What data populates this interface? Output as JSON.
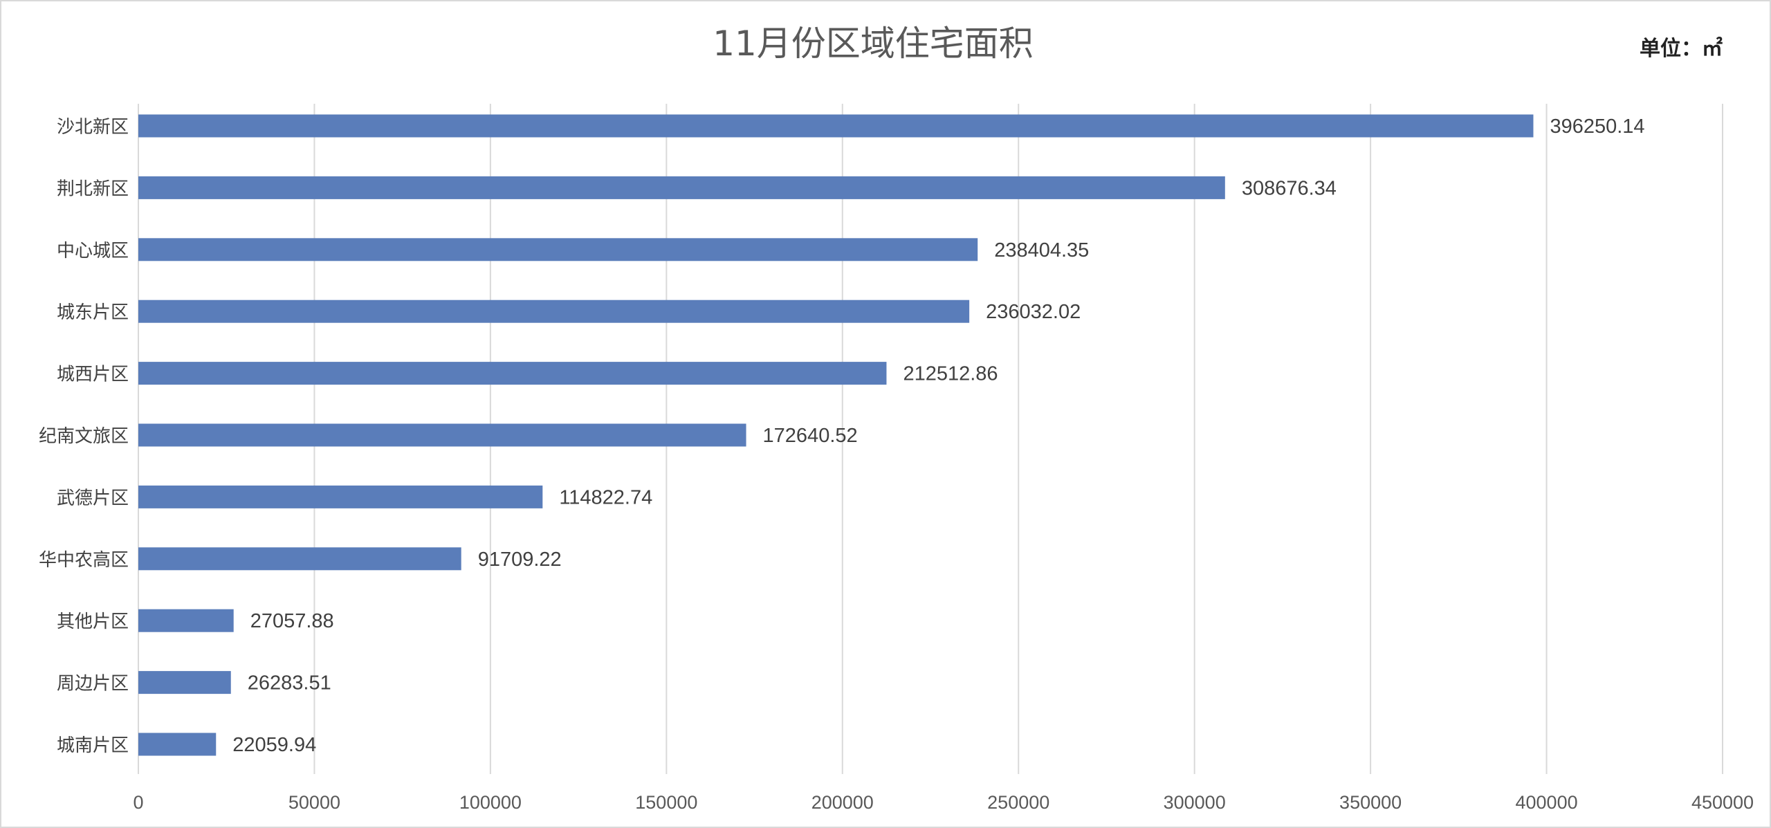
{
  "chart_data": {
    "type": "bar",
    "orientation": "horizontal",
    "title": "11月份区域住宅面积",
    "unit_label": "单位：㎡",
    "categories": [
      "沙北新区",
      "荆北新区",
      "中心城区",
      "城东片区",
      "城西片区",
      "纪南文旅区",
      "武德片区",
      "华中农高区",
      "其他片区",
      "周边片区",
      "城南片区"
    ],
    "values": [
      396250.14,
      308676.34,
      238404.35,
      236032.02,
      212512.86,
      172640.52,
      114822.74,
      91709.22,
      27057.88,
      26283.51,
      22059.94
    ],
    "data_labels": [
      "396250.14",
      "308676.34",
      "238404.35",
      "236032.02",
      "212512.86",
      "172640.52",
      "114822.74",
      "91709.22",
      "27057.88",
      "26283.51",
      "22059.94"
    ],
    "xlim": [
      0,
      450000
    ],
    "x_ticks": [
      0,
      50000,
      100000,
      150000,
      200000,
      250000,
      300000,
      350000,
      400000,
      450000
    ],
    "x_tick_labels": [
      "0",
      "50000",
      "100000",
      "150000",
      "200000",
      "250000",
      "300000",
      "350000",
      "400000",
      "450000"
    ],
    "grid": "vertical",
    "legend": "none",
    "bar_color": "#5a7dba"
  }
}
